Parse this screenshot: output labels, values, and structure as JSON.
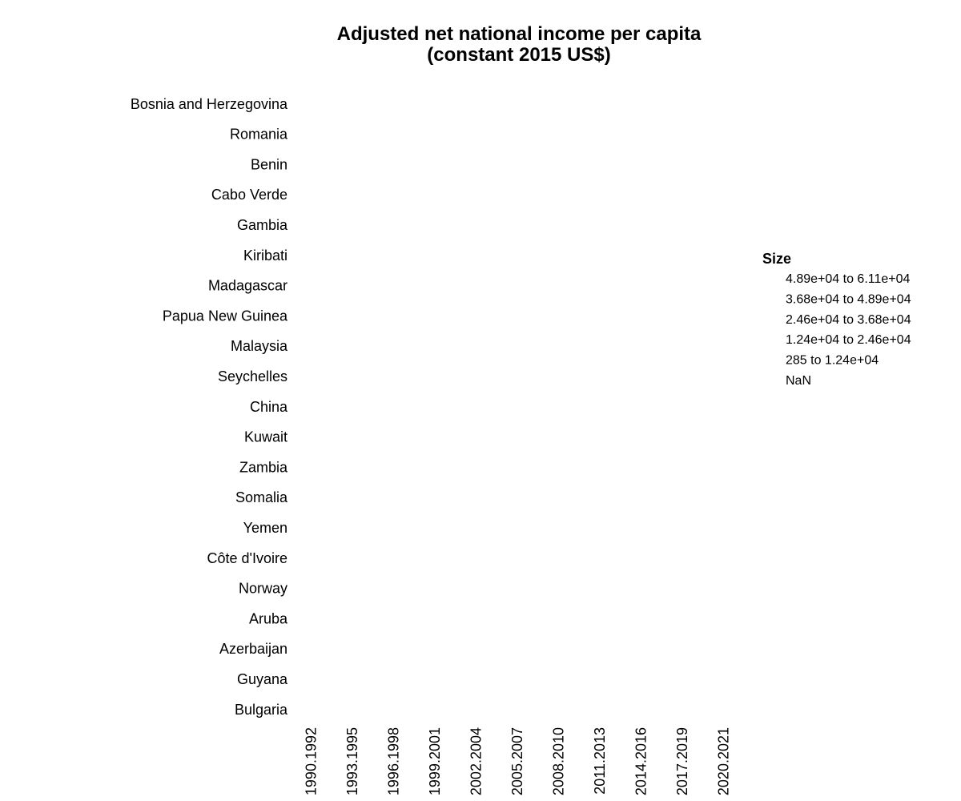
{
  "chart_data": {
    "type": "scatter",
    "title_lines": [
      "Adjusted net national income per capita",
      "(constant 2015 US$)"
    ],
    "xlabel": "",
    "ylabel": "",
    "x_categories": [
      "1990.1992",
      "1993.1995",
      "1996.1998",
      "1999.2001",
      "2002.2004",
      "2005.2007",
      "2008.2010",
      "2011.2013",
      "2014.2016",
      "2017.2019",
      "2020.2021"
    ],
    "y_categories": [
      "Bosnia and Herzegovina",
      "Romania",
      "Benin",
      "Cabo Verde",
      "Gambia",
      "Kiribati",
      "Madagascar",
      "Papua New Guinea",
      "Malaysia",
      "Seychelles",
      "China",
      "Kuwait",
      "Zambia",
      "Somalia",
      "Yemen",
      "Côte d'Ivoire",
      "Norway",
      "Aruba",
      "Azerbaijan",
      "Guyana",
      "Bulgaria"
    ],
    "points": [],
    "legend": {
      "title": "Size",
      "placement": "right",
      "entries": [
        "4.89e+04 to 6.11e+04",
        "3.68e+04 to 4.89e+04",
        "2.46e+04 to 3.68e+04",
        "1.24e+04 to 2.46e+04",
        "285 to 1.24e+04",
        "NaN"
      ]
    },
    "grid": false
  }
}
